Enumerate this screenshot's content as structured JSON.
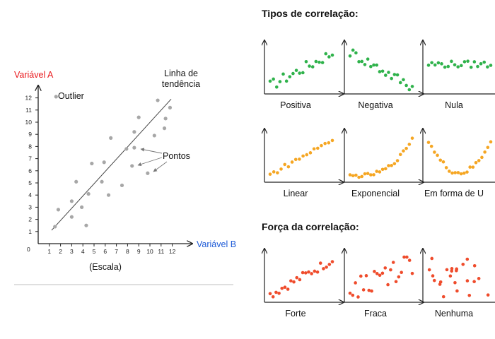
{
  "main_chart": {
    "y_axis_label": "Variável A",
    "x_axis_label": "Variável B",
    "scale_label": "(Escala)",
    "origin_label": "0",
    "trend_label_line1": "Linha de",
    "trend_label_line2": "tendência",
    "outlier_label": "Outlier",
    "points_label": "Pontos",
    "label_colors": {
      "y_axis": "#e8161a",
      "x_axis": "#1e5bd7"
    },
    "point_color": "#a7a7a7",
    "x_ticks": [
      "1",
      "2",
      "3",
      "4",
      "5",
      "6",
      "7",
      "8",
      "9",
      "10",
      "11",
      "12"
    ],
    "y_ticks": [
      "1",
      "2",
      "3",
      "4",
      "5",
      "6",
      "7",
      "8",
      "9",
      "10",
      "11",
      "12"
    ]
  },
  "chart_data": {
    "type": "scatter",
    "xlabel": "Variável B",
    "ylabel": "Variável A",
    "xlim": [
      0,
      12.5
    ],
    "ylim": [
      0,
      12.8
    ],
    "series": [
      {
        "x": [
          1.5,
          1.8,
          3.0,
          3.0,
          3.4,
          3.9,
          4.3,
          4.5,
          4.8,
          5.7,
          5.9,
          6.3,
          6.5,
          7.5,
          7.9,
          8.4,
          8.6,
          8.6,
          9.0,
          9.8,
          10.4,
          10.7,
          11.3,
          11.4,
          11.8,
          1.6
        ],
        "y": [
          1.4,
          2.8,
          2.2,
          3.5,
          5.1,
          3.0,
          1.5,
          4.1,
          6.6,
          5.1,
          6.7,
          4.0,
          8.7,
          4.8,
          7.8,
          6.4,
          9.2,
          7.9,
          10.4,
          5.8,
          8.9,
          11.8,
          9.5,
          10.3,
          11.2,
          12.1
        ]
      }
    ],
    "trend_line": {
      "x": [
        1.2,
        11.9
      ],
      "y": [
        1.1,
        11.9
      ]
    },
    "grid": false
  },
  "types_section": {
    "title": "Tipos de correlação:",
    "panels": [
      {
        "label": "Positiva",
        "color": "#2fb24b"
      },
      {
        "label": "Negativa",
        "color": "#2fb24b"
      },
      {
        "label": "Nula",
        "color": "#2fb24b"
      },
      {
        "label": "Linear",
        "color": "#f5a623"
      },
      {
        "label": "Exponencial",
        "color": "#f5a623"
      },
      {
        "label": "Em forma de U",
        "color": "#f5a623"
      }
    ]
  },
  "strength_section": {
    "title": "Força da correlação:",
    "panels": [
      {
        "label": "Forte",
        "color": "#ef4c2c"
      },
      {
        "label": "Fraca",
        "color": "#ef4c2c"
      },
      {
        "label": "Nenhuma",
        "color": "#ef4c2c"
      }
    ]
  }
}
